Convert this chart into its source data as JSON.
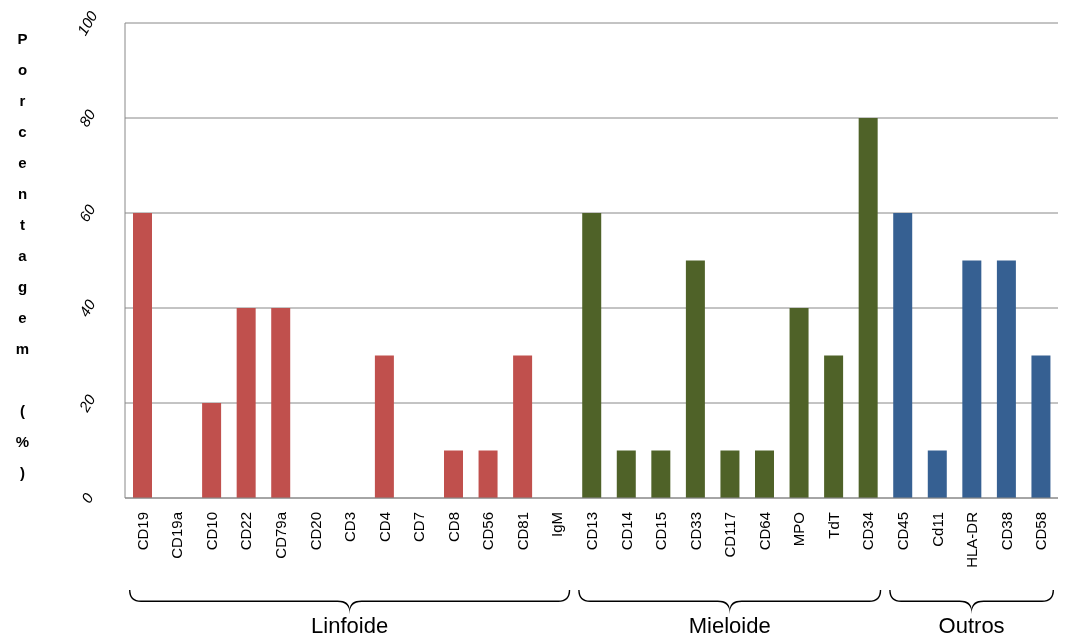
{
  "chart_data": {
    "type": "bar",
    "ylabel": "Porcentagem (%)",
    "categories": [
      "CD19",
      "CD19a",
      "CD10",
      "CD22",
      "CD79a",
      "CD20",
      "CD3",
      "CD4",
      "CD7",
      "CD8",
      "CD56",
      "CD81",
      "IgM",
      "CD13",
      "CD14",
      "CD15",
      "CD33",
      "CD117",
      "CD64",
      "MPO",
      "TdT",
      "CD34",
      "CD45",
      "Cd11",
      "HLA-DR",
      "CD38",
      "CD58"
    ],
    "values": [
      60,
      0,
      20,
      40,
      40,
      0,
      0,
      30,
      0,
      10,
      10,
      30,
      0,
      60,
      10,
      10,
      50,
      10,
      10,
      40,
      30,
      80,
      60,
      10,
      50,
      50,
      30
    ],
    "colors": [
      "#c0504d",
      "#c0504d",
      "#c0504d",
      "#c0504d",
      "#c0504d",
      "#c0504d",
      "#c0504d",
      "#c0504d",
      "#c0504d",
      "#c0504d",
      "#c0504d",
      "#c0504d",
      "#c0504d",
      "#4f6228",
      "#4f6228",
      "#4f6228",
      "#4f6228",
      "#4f6228",
      "#4f6228",
      "#4f6228",
      "#4f6228",
      "#4f6228",
      "#366092",
      "#366092",
      "#366092",
      "#366092",
      "#366092"
    ],
    "ylim": [
      0,
      100
    ],
    "yticks": [
      0,
      20,
      40,
      60,
      80,
      100
    ],
    "grid": "y",
    "annotations": [
      "Linfoide",
      "Mieloide",
      "Outros"
    ]
  }
}
